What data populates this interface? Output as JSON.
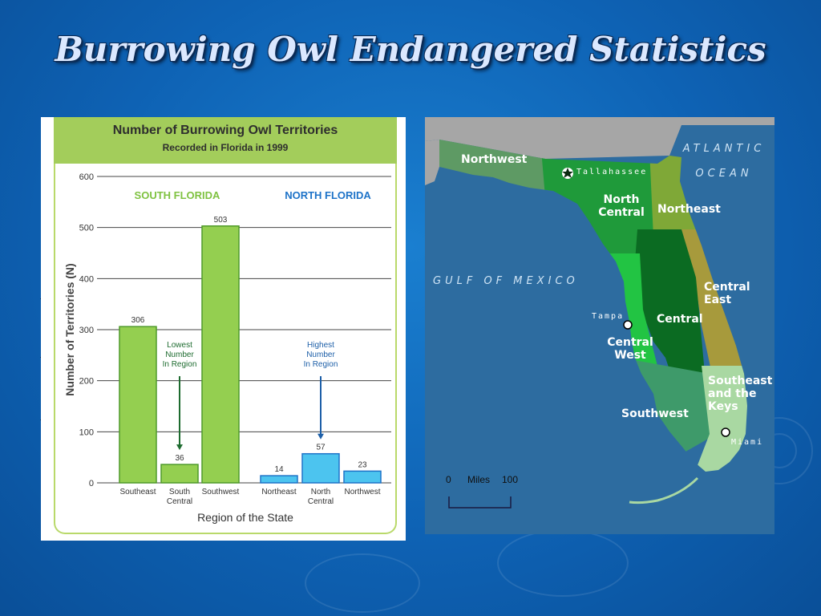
{
  "slide": {
    "title": "Burrowing Owl Endangered Statistics"
  },
  "chart_data": {
    "type": "bar",
    "title": "Number of Burrowing Owl Territories",
    "subtitle": "Recorded in Florida in 1999",
    "ylabel": "Number of Territories (N)",
    "xlabel": "Region of the State",
    "ylim": [
      0,
      600
    ],
    "yticks": [
      0,
      100,
      200,
      300,
      400,
      500,
      600
    ],
    "grid": true,
    "groups": [
      {
        "name": "SOUTH FLORIDA",
        "color": "#7fc241"
      },
      {
        "name": "NORTH FLORIDA",
        "color": "#1e73c8"
      }
    ],
    "bars": [
      {
        "category": "Southeast",
        "value": 306,
        "label": "306",
        "group": 0,
        "color": "#94cf50"
      },
      {
        "category": "South Central",
        "value": 36,
        "label": "36",
        "group": 0,
        "color": "#94cf50"
      },
      {
        "category": "Southwest",
        "value": 503,
        "label": "503",
        "group": 0,
        "color": "#94cf50"
      },
      {
        "category": "Northeast",
        "value": 14,
        "label": "14",
        "group": 1,
        "color": "#4cc4ef"
      },
      {
        "category": "North Central",
        "value": 57,
        "label": "57",
        "group": 1,
        "color": "#4cc4ef"
      },
      {
        "category": "Northwest",
        "value": 23,
        "label": "23",
        "group": 1,
        "color": "#4cc4ef"
      }
    ],
    "annotations": [
      {
        "text": "Lowest Number In Region",
        "bar_index": 1,
        "color": "#1d6b2f"
      },
      {
        "text": "Highest Number In Region",
        "bar_index": 4,
        "color": "#1d5fa8"
      }
    ]
  },
  "map": {
    "regions": {
      "northwest": "Northwest",
      "north_central": "North Central",
      "northeast": "Northeast",
      "central_east": "Central East",
      "central": "Central",
      "central_west": "Central West",
      "southwest": "Southwest",
      "southeast": "Southeast and the Keys"
    },
    "water": {
      "atlantic": "ATLANTIC OCEAN",
      "gulf": "GULF OF MEXICO"
    },
    "cities": {
      "capital": "Tallahassee",
      "tampa": "Tampa",
      "miami": "Miami"
    },
    "scale": {
      "zero": "0",
      "unit": "Miles",
      "max": "100"
    },
    "colors": {
      "northwest": "#5e9a64",
      "north_central": "#1f9a3a",
      "northeast": "#7fa837",
      "central_east": "#a79a3c",
      "central": "#0b6b22",
      "central_west": "#22c443",
      "southwest": "#3e9a6a",
      "southeast": "#a9d8a2",
      "land_other": "#a6a6a6"
    }
  }
}
